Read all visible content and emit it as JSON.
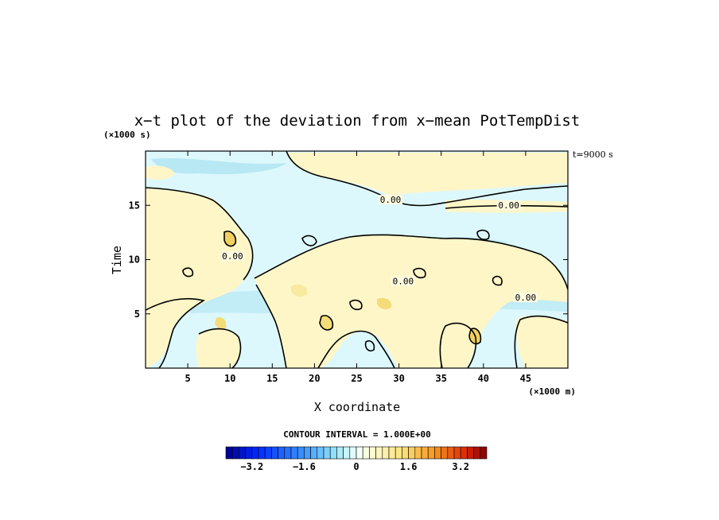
{
  "chart_data": {
    "type": "heatmap",
    "title": "x−t plot of the deviation from x−mean PotTempDist",
    "xlabel": "X coordinate",
    "ylabel": "Time",
    "x_unit": "(×1000 m)",
    "y_unit": "(×1000 s)",
    "time_note": "t=9000 s",
    "xlim": [
      0,
      50
    ],
    "ylim": [
      0,
      20
    ],
    "x_ticks": [
      5,
      10,
      15,
      20,
      25,
      30,
      35,
      40,
      45
    ],
    "y_ticks": [
      5,
      10,
      15
    ],
    "contour_labels": [
      {
        "text": "0.00",
        "x": 29,
        "y": 15.3
      },
      {
        "text": "0.00",
        "x": 43,
        "y": 14.8
      },
      {
        "text": "0.00",
        "x": 10.3,
        "y": 10.1
      },
      {
        "text": "0.00",
        "x": 30.5,
        "y": 7.8
      },
      {
        "text": "0.00",
        "x": 45,
        "y": 6.3
      }
    ],
    "colorbar": {
      "title": "CONTOUR INTERVAL = 1.000E+00",
      "vmin": -4,
      "vmax": 4,
      "tick_labels": [
        "−3.2",
        "−1.6",
        "0",
        "1.6",
        "3.2"
      ],
      "tick_values": [
        -3.2,
        -1.6,
        0,
        1.6,
        3.2
      ]
    },
    "colors": {
      "positive_weak": "#fff6c8",
      "negative_weak": "#dcf8fc",
      "negative_medium": "#b8e8f4",
      "positive_medium": "#f8eaa0",
      "positive_strong": "#f0d060"
    }
  }
}
